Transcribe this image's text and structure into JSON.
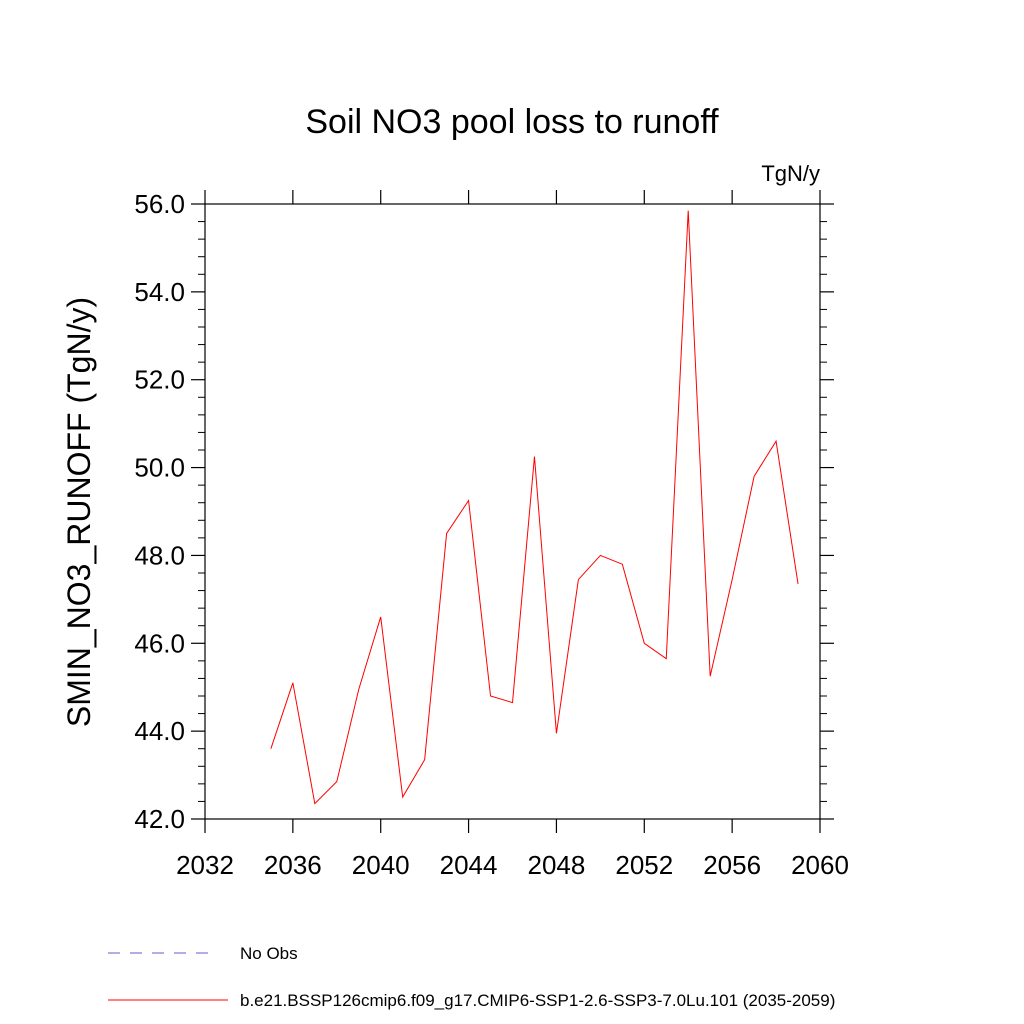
{
  "chart_data": {
    "type": "line",
    "title": "Soil NO3 pool loss to runoff",
    "units_label": "TgN/y",
    "xlabel": "",
    "ylabel": "SMIN_NO3_RUNOFF  (TgN/y)",
    "xlim": [
      2032,
      2060
    ],
    "ylim": [
      42.0,
      56.0
    ],
    "x_ticks": [
      2032,
      2036,
      2040,
      2044,
      2048,
      2052,
      2056,
      2060
    ],
    "y_ticks": [
      "42.0",
      "44.0",
      "46.0",
      "48.0",
      "50.0",
      "52.0",
      "54.0",
      "56.0"
    ],
    "grid": false,
    "legend_position": "bottom",
    "series": [
      {
        "name": "No Obs",
        "color": "#6a5acd",
        "dash": "dashed",
        "x": [],
        "values": []
      },
      {
        "name": "b.e21.BSSP126cmip6.f09_g17.CMIP6-SSP1-2.6-SSP3-7.0Lu.101 (2035-2059)",
        "color": "#ff0000",
        "dash": "solid",
        "x": [
          2035,
          2036,
          2037,
          2038,
          2039,
          2040,
          2041,
          2042,
          2043,
          2044,
          2045,
          2046,
          2047,
          2048,
          2049,
          2050,
          2051,
          2052,
          2053,
          2054,
          2055,
          2056,
          2057,
          2058,
          2059
        ],
        "values": [
          43.6,
          45.1,
          42.35,
          42.85,
          44.95,
          46.6,
          42.5,
          43.35,
          48.5,
          49.25,
          44.8,
          44.65,
          50.25,
          43.95,
          47.45,
          48.0,
          47.8,
          46.0,
          45.65,
          55.85,
          45.25,
          47.45,
          49.8,
          50.6,
          47.35
        ]
      }
    ]
  }
}
